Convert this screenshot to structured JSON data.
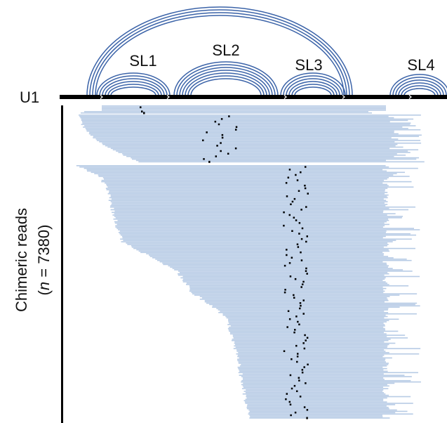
{
  "structure": {
    "molecule": "U1",
    "stem_loops": [
      "SL1",
      "SL2",
      "SL3",
      "SL4"
    ]
  },
  "reads_axis": {
    "line1": "Chimeric reads",
    "line2_open": "(",
    "line2_italic": "n",
    "line2_rest": " = 7380)"
  }
}
